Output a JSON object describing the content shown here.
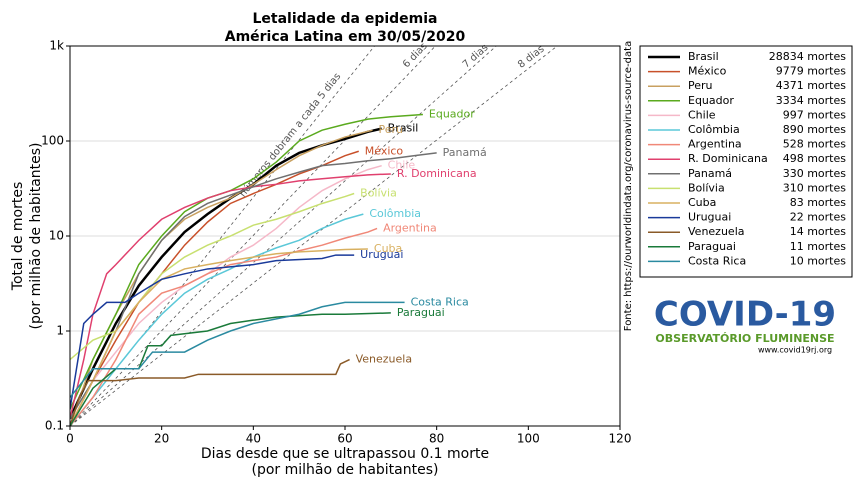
{
  "chart_data": {
    "type": "line",
    "title": [
      "Letalidade da epidemia",
      "América Latina em 30/05/2020"
    ],
    "x_label": [
      "Dias desde que se ultrapassou 0.1 morte",
      "(por milhão de habitantes)"
    ],
    "y_label": [
      "Total de mortes",
      "(por milhão de habitantes)"
    ],
    "source": "Fonte: https://ourworldindata.org/coronavirus-source-data",
    "logo": {
      "title": "COVID-19",
      "subtitle": "OBSERVATÓRIO FLUMINENSE",
      "url": "www.covid19rj.org"
    },
    "xlim": [
      0,
      120
    ],
    "xticks": [
      0,
      20,
      40,
      60,
      80,
      100,
      120
    ],
    "ylim": [
      0.1,
      1000
    ],
    "yscale": "log",
    "yticks": [
      0.1,
      1,
      10,
      100,
      {
        "value": 1000,
        "label": "1k"
      }
    ],
    "grid": true,
    "doubling_lines": [
      {
        "days": 5,
        "label": "números dobram a cada 5 dias"
      },
      {
        "days": 6,
        "label": "6 dias"
      },
      {
        "days": 7,
        "label": "7 dias"
      },
      {
        "days": 8,
        "label": "8 dias"
      }
    ],
    "series": [
      {
        "name": "Brasil",
        "deaths_label": "28834 mortes",
        "color": "#000000",
        "width": 2.5,
        "x": [
          0,
          5,
          10,
          15,
          20,
          25,
          30,
          35,
          40,
          45,
          50,
          55,
          60,
          65,
          68
        ],
        "values": [
          0.12,
          0.4,
          1.2,
          3,
          6,
          11,
          17,
          25,
          35,
          55,
          75,
          90,
          105,
          125,
          135
        ]
      },
      {
        "name": "México",
        "deaths_label": "9779 mortes",
        "color": "#c8502a",
        "x": [
          0,
          5,
          10,
          15,
          20,
          25,
          30,
          35,
          40,
          45,
          50,
          55,
          60,
          63
        ],
        "values": [
          0.1,
          0.3,
          0.8,
          2,
          4,
          8,
          14,
          22,
          28,
          35,
          45,
          55,
          70,
          78
        ]
      },
      {
        "name": "Peru",
        "deaths_label": "4371 mortes",
        "color": "#c8a060",
        "x": [
          0,
          5,
          10,
          15,
          20,
          25,
          30,
          35,
          40,
          45,
          50,
          55,
          60,
          66
        ],
        "values": [
          0.1,
          0.5,
          1.5,
          4,
          9,
          15,
          20,
          25,
          35,
          50,
          70,
          90,
          110,
          130
        ]
      },
      {
        "name": "Equador",
        "deaths_label": "3334 mortes",
        "color": "#5aaa1e",
        "x": [
          0,
          5,
          10,
          15,
          20,
          25,
          30,
          35,
          40,
          45,
          50,
          55,
          60,
          65,
          70,
          77
        ],
        "values": [
          0.15,
          0.5,
          1.5,
          5,
          10,
          18,
          25,
          30,
          40,
          60,
          100,
          130,
          150,
          170,
          180,
          190
        ]
      },
      {
        "name": "Chile",
        "deaths_label": "997 mortes",
        "color": "#f5b8c8",
        "x": [
          0,
          5,
          10,
          15,
          20,
          25,
          30,
          35,
          40,
          45,
          50,
          55,
          60,
          65,
          68
        ],
        "values": [
          0.1,
          0.3,
          0.6,
          1.2,
          2,
          3,
          4,
          6,
          8,
          12,
          20,
          30,
          40,
          50,
          55
        ]
      },
      {
        "name": "Colômbia",
        "deaths_label": "890 mortes",
        "color": "#5bc8d8",
        "x": [
          0,
          5,
          10,
          15,
          20,
          25,
          30,
          35,
          40,
          45,
          50,
          55,
          60,
          64
        ],
        "values": [
          0.1,
          0.2,
          0.4,
          0.8,
          1.5,
          2.5,
          3.5,
          4.5,
          6,
          7.5,
          9,
          12,
          15,
          17
        ]
      },
      {
        "name": "Argentina",
        "deaths_label": "528 mortes",
        "color": "#f08878",
        "x": [
          0,
          5,
          10,
          15,
          20,
          25,
          30,
          35,
          40,
          45,
          50,
          55,
          60,
          65,
          67
        ],
        "values": [
          0.1,
          0.2,
          0.5,
          1.5,
          2.5,
          3,
          4,
          5,
          5.5,
          6,
          7,
          8,
          9.5,
          11,
          12
        ]
      },
      {
        "name": "R. Dominicana",
        "deaths_label": "498 mortes",
        "color": "#e0406e",
        "x": [
          0,
          3,
          5,
          8,
          10,
          15,
          20,
          25,
          30,
          35,
          40,
          45,
          50,
          55,
          60,
          65,
          70
        ],
        "values": [
          0.12,
          0.5,
          1.5,
          4,
          5,
          9,
          15,
          20,
          25,
          30,
          33,
          35,
          38,
          40,
          42,
          44,
          45
        ]
      },
      {
        "name": "Panamá",
        "deaths_label": "330 mortes",
        "color": "#707070",
        "x": [
          0,
          5,
          10,
          15,
          20,
          25,
          30,
          35,
          40,
          45,
          50,
          55,
          60,
          65,
          70,
          75,
          80
        ],
        "values": [
          0.12,
          0.3,
          1,
          4,
          9,
          16,
          22,
          27,
          33,
          40,
          47,
          55,
          58,
          62,
          65,
          70,
          75
        ]
      },
      {
        "name": "Bolívia",
        "deaths_label": "310 mortes",
        "color": "#c8e070",
        "x": [
          0,
          5,
          10,
          15,
          20,
          25,
          30,
          35,
          40,
          45,
          50,
          55,
          60,
          62
        ],
        "values": [
          0.5,
          0.8,
          1,
          2,
          4,
          6,
          8,
          10,
          13,
          15,
          18,
          22,
          26,
          28
        ]
      },
      {
        "name": "Cuba",
        "deaths_label": "83 mortes",
        "color": "#d8b060",
        "x": [
          0,
          5,
          10,
          15,
          20,
          25,
          30,
          35,
          40,
          45,
          50,
          55,
          60,
          65
        ],
        "values": [
          0.1,
          0.3,
          1,
          2,
          3.5,
          4.5,
          5,
          5.5,
          6,
          6.5,
          6.8,
          7,
          7.2,
          7.3
        ]
      },
      {
        "name": "Uruguai",
        "deaths_label": "22 mortes",
        "color": "#1a3a9a",
        "x": [
          0,
          3,
          5,
          8,
          12,
          15,
          20,
          25,
          30,
          40,
          45,
          55,
          58,
          62
        ],
        "values": [
          0.15,
          1.2,
          1.5,
          2,
          2,
          2.5,
          3.5,
          4,
          4.5,
          5,
          5.5,
          5.8,
          6.3,
          6.3
        ]
      },
      {
        "name": "Venezuela",
        "deaths_label": "14 mortes",
        "color": "#8a5a28",
        "x": [
          0,
          2,
          4,
          10,
          15,
          25,
          28,
          50,
          58,
          59,
          61
        ],
        "values": [
          0.1,
          0.2,
          0.3,
          0.3,
          0.32,
          0.32,
          0.35,
          0.35,
          0.35,
          0.45,
          0.5
        ]
      },
      {
        "name": "Paraguai",
        "deaths_label": "11 mortes",
        "color": "#1a7a3a",
        "x": [
          0,
          5,
          10,
          15,
          17,
          20,
          22,
          30,
          35,
          40,
          45,
          55,
          60,
          70
        ],
        "values": [
          0.1,
          0.25,
          0.4,
          0.4,
          0.7,
          0.7,
          0.9,
          1,
          1.2,
          1.3,
          1.4,
          1.5,
          1.5,
          1.55
        ]
      },
      {
        "name": "Costa Rica",
        "deaths_label": "10 mortes",
        "color": "#2a8aa0",
        "x": [
          0,
          5,
          10,
          15,
          18,
          25,
          30,
          35,
          40,
          50,
          55,
          60,
          73
        ],
        "values": [
          0.2,
          0.4,
          0.4,
          0.4,
          0.6,
          0.6,
          0.8,
          1,
          1.2,
          1.5,
          1.8,
          2,
          2
        ]
      }
    ]
  }
}
